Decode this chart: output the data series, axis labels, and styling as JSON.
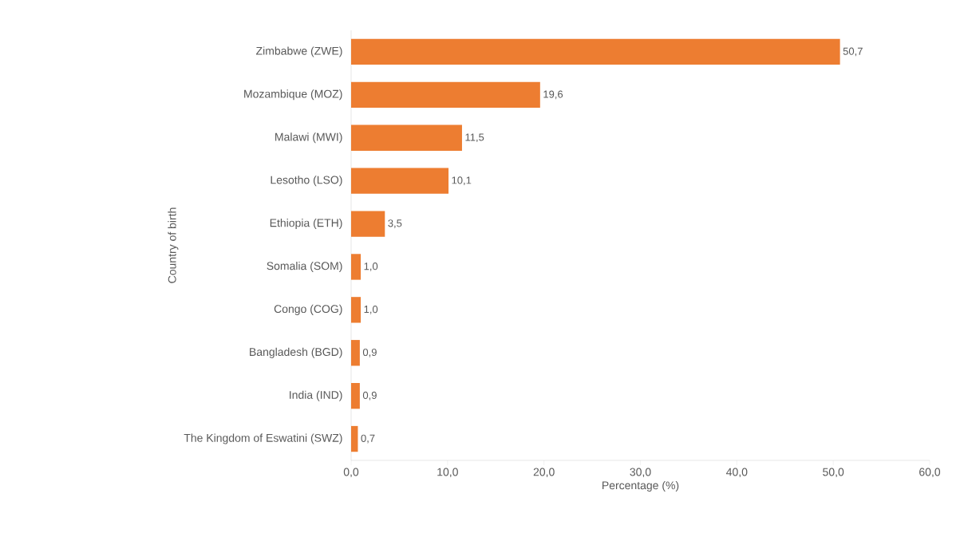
{
  "chart_data": {
    "type": "bar",
    "orientation": "horizontal",
    "xlabel": "Percentage (%)",
    "ylabel": "Country of birth",
    "categories": [
      "Zimbabwe (ZWE)",
      "Mozambique (MOZ)",
      "Malawi (MWI)",
      "Lesotho (LSO)",
      "Ethiopia (ETH)",
      "Somalia (SOM)",
      "Congo (COG)",
      "Bangladesh (BGD)",
      "India (IND)",
      "The Kingdom of Eswatini (SWZ)"
    ],
    "values": [
      50.7,
      19.6,
      11.5,
      10.1,
      3.5,
      1.0,
      1.0,
      0.9,
      0.9,
      0.7
    ],
    "value_labels": [
      "50,7",
      "19,6",
      "11,5",
      "10,1",
      "3,5",
      "1,0",
      "1,0",
      "0,9",
      "0,9",
      "0,7"
    ],
    "color": "#ed7d31",
    "xlim": [
      0,
      60
    ],
    "xticks": [
      {
        "value": 0,
        "label": "0,0"
      },
      {
        "value": 10,
        "label": "10,0"
      },
      {
        "value": 20,
        "label": "20,0"
      },
      {
        "value": 30,
        "label": "30,0"
      },
      {
        "value": 40,
        "label": "40,0"
      },
      {
        "value": 50,
        "label": "50,0"
      },
      {
        "value": 60,
        "label": "60,0"
      }
    ]
  }
}
